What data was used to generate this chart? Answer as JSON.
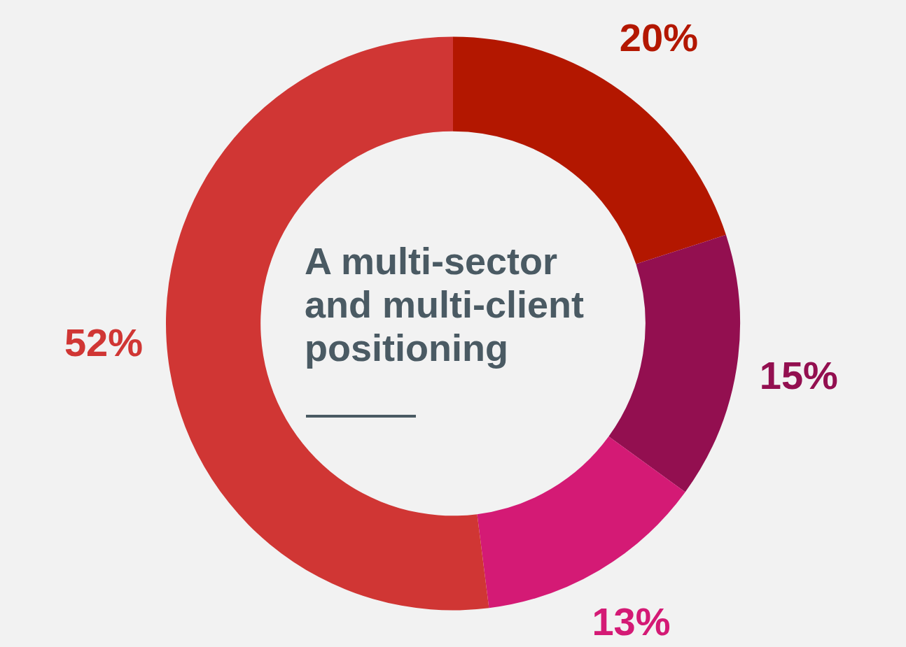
{
  "chart_data": {
    "type": "donut",
    "title": "A multi-sector and multi-client positioning",
    "categories": [
      null,
      null,
      null,
      null
    ],
    "values": [
      20,
      15,
      13,
      52
    ],
    "value_labels": [
      "20%",
      "15%",
      "13%",
      "52%"
    ],
    "colors": [
      "#b31700",
      "#930f50",
      "#d41a75",
      "#d03634"
    ]
  }
}
